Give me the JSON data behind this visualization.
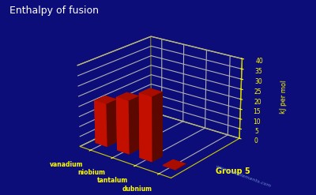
{
  "title": "Enthalpy of fusion",
  "ylabel": "kJ per mol",
  "group_label": "Group 5",
  "website": "www.webelements.com",
  "elements": [
    "vanadium",
    "niobium",
    "tantalum",
    "dubnium"
  ],
  "values": [
    21.5,
    26.4,
    31.6,
    0.3
  ],
  "ylim": [
    0,
    40
  ],
  "yticks": [
    0,
    5,
    10,
    15,
    20,
    25,
    30,
    35,
    40
  ],
  "bar_color": "#dd1100",
  "background_color": "#0d0d7a",
  "grid_color": "#cccc00",
  "text_color": "#ffff00",
  "title_color": "#ffffff",
  "bar_width": 0.55,
  "bar_depth": 0.55,
  "elev": 22,
  "azim": -52
}
